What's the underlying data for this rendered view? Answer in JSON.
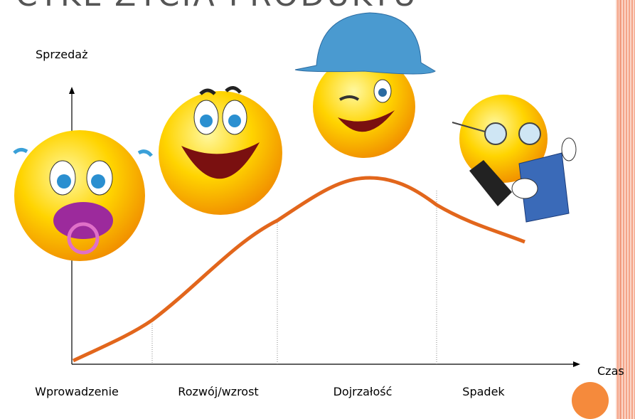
{
  "title": "CYKL ŻYCIA PRODUKTU",
  "y_axis_label": "Sprzedaż",
  "x_axis_label": "Czas",
  "stages": [
    "Wprowadzenie",
    "Rozwój/wzrost",
    "Dojrzałość",
    "Spadek"
  ]
}
